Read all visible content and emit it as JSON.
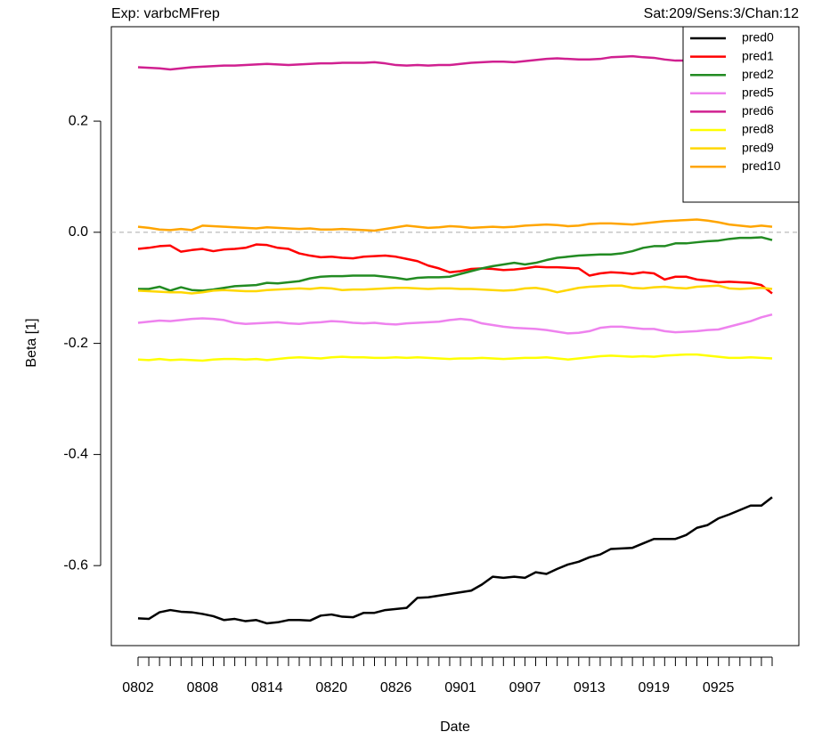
{
  "chart_data": {
    "type": "line",
    "title": "Exp: varbcMFrep",
    "subtitle": "Sat:209/Sens:3/Chan:12",
    "x_label": "Date",
    "y_label": "Beta [1]",
    "categories": [
      "0802",
      null,
      null,
      null,
      null,
      null,
      "0808",
      null,
      null,
      null,
      null,
      null,
      "0814",
      null,
      null,
      null,
      null,
      null,
      "0820",
      null,
      null,
      null,
      null,
      null,
      "0826",
      null,
      null,
      null,
      null,
      null,
      "0901",
      null,
      null,
      null,
      null,
      null,
      "0907",
      null,
      null,
      null,
      null,
      null,
      "0913",
      null,
      null,
      null,
      null,
      null,
      "0919",
      null,
      null,
      null,
      null,
      null,
      "0925",
      null,
      null,
      null,
      null,
      null
    ],
    "ylim": [
      -0.744,
      0.37
    ],
    "yticks": [
      0.2,
      {
        "value": 0,
        "label": "0.0"
      },
      -0.2,
      -0.4,
      -0.6
    ],
    "reference_line": 0,
    "legend": "topright",
    "series": [
      {
        "name": "pred0",
        "color": "#000000",
        "values": [
          -0.695,
          -0.696,
          -0.684,
          -0.68,
          -0.683,
          -0.684,
          -0.687,
          -0.691,
          -0.698,
          -0.696,
          -0.7,
          -0.698,
          -0.704,
          -0.702,
          -0.698,
          -0.698,
          -0.699,
          -0.69,
          -0.688,
          -0.692,
          -0.693,
          -0.685,
          -0.685,
          -0.68,
          -0.678,
          -0.676,
          -0.658,
          -0.657,
          -0.654,
          -0.651,
          -0.648,
          -0.645,
          -0.634,
          -0.62,
          -0.622,
          -0.62,
          -0.622,
          -0.612,
          -0.615,
          -0.606,
          -0.598,
          -0.593,
          -0.585,
          -0.58,
          -0.57,
          -0.569,
          -0.568,
          -0.56,
          -0.552,
          -0.552,
          -0.552,
          -0.545,
          -0.532,
          -0.527,
          -0.515,
          -0.508,
          -0.5,
          -0.492,
          -0.492,
          -0.477
        ]
      },
      {
        "name": "pred1",
        "color": "#ff0000",
        "values": [
          -0.03,
          -0.028,
          -0.025,
          -0.024,
          -0.035,
          -0.032,
          -0.03,
          -0.034,
          -0.031,
          -0.03,
          -0.028,
          -0.022,
          -0.023,
          -0.028,
          -0.03,
          -0.038,
          -0.042,
          -0.045,
          -0.044,
          -0.046,
          -0.047,
          -0.044,
          -0.043,
          -0.042,
          -0.044,
          -0.048,
          -0.052,
          -0.06,
          -0.065,
          -0.072,
          -0.07,
          -0.066,
          -0.065,
          -0.066,
          -0.068,
          -0.067,
          -0.065,
          -0.062,
          -0.063,
          -0.063,
          -0.064,
          -0.065,
          -0.078,
          -0.074,
          -0.072,
          -0.073,
          -0.075,
          -0.072,
          -0.074,
          -0.085,
          -0.08,
          -0.08,
          -0.085,
          -0.087,
          -0.09,
          -0.089,
          -0.09,
          -0.091,
          -0.095,
          -0.11
        ]
      },
      {
        "name": "pred2",
        "color": "#228b22",
        "values": [
          -0.102,
          -0.102,
          -0.098,
          -0.105,
          -0.099,
          -0.104,
          -0.105,
          -0.103,
          -0.1,
          -0.097,
          -0.096,
          -0.095,
          -0.091,
          -0.092,
          -0.09,
          -0.088,
          -0.083,
          -0.08,
          -0.079,
          -0.079,
          -0.078,
          -0.078,
          -0.078,
          -0.08,
          -0.082,
          -0.085,
          -0.082,
          -0.081,
          -0.081,
          -0.08,
          -0.075,
          -0.07,
          -0.065,
          -0.061,
          -0.058,
          -0.055,
          -0.058,
          -0.055,
          -0.05,
          -0.046,
          -0.044,
          -0.042,
          -0.041,
          -0.04,
          -0.04,
          -0.038,
          -0.034,
          -0.028,
          -0.025,
          -0.025,
          -0.02,
          -0.02,
          -0.018,
          -0.016,
          -0.015,
          -0.012,
          -0.01,
          -0.01,
          -0.009,
          -0.014
        ]
      },
      {
        "name": "pred5",
        "color": "#ee82ee",
        "values": [
          -0.163,
          -0.161,
          -0.159,
          -0.16,
          -0.158,
          -0.156,
          -0.155,
          -0.156,
          -0.158,
          -0.163,
          -0.165,
          -0.164,
          -0.163,
          -0.162,
          -0.164,
          -0.165,
          -0.163,
          -0.162,
          -0.16,
          -0.161,
          -0.163,
          -0.164,
          -0.163,
          -0.165,
          -0.166,
          -0.164,
          -0.163,
          -0.162,
          -0.161,
          -0.158,
          -0.156,
          -0.158,
          -0.164,
          -0.167,
          -0.17,
          -0.172,
          -0.173,
          -0.174,
          -0.176,
          -0.179,
          -0.182,
          -0.181,
          -0.178,
          -0.172,
          -0.17,
          -0.17,
          -0.172,
          -0.174,
          -0.174,
          -0.178,
          -0.18,
          -0.179,
          -0.178,
          -0.176,
          -0.175,
          -0.17,
          -0.165,
          -0.16,
          -0.153,
          -0.148
        ]
      },
      {
        "name": "pred6",
        "color": "#d02090",
        "values": [
          0.297,
          0.296,
          0.295,
          0.293,
          0.295,
          0.297,
          0.298,
          0.299,
          0.3,
          0.3,
          0.301,
          0.302,
          0.303,
          0.302,
          0.301,
          0.302,
          0.303,
          0.304,
          0.304,
          0.305,
          0.305,
          0.305,
          0.306,
          0.304,
          0.301,
          0.3,
          0.301,
          0.3,
          0.301,
          0.301,
          0.303,
          0.305,
          0.306,
          0.307,
          0.307,
          0.306,
          0.308,
          0.31,
          0.312,
          0.313,
          0.312,
          0.311,
          0.311,
          0.312,
          0.315,
          0.316,
          0.317,
          0.315,
          0.314,
          0.311,
          0.309,
          0.309,
          0.31,
          0.31,
          0.31,
          0.311,
          0.311,
          0.31,
          0.31,
          0.31
        ]
      },
      {
        "name": "pred8",
        "color": "#ffff00",
        "values": [
          -0.229,
          -0.23,
          -0.228,
          -0.23,
          -0.229,
          -0.23,
          -0.231,
          -0.229,
          -0.228,
          -0.228,
          -0.229,
          -0.228,
          -0.23,
          -0.228,
          -0.226,
          -0.225,
          -0.226,
          -0.227,
          -0.225,
          -0.224,
          -0.225,
          -0.225,
          -0.226,
          -0.226,
          -0.225,
          -0.226,
          -0.225,
          -0.226,
          -0.227,
          -0.228,
          -0.227,
          -0.227,
          -0.226,
          -0.227,
          -0.228,
          -0.227,
          -0.226,
          -0.226,
          -0.225,
          -0.227,
          -0.229,
          -0.227,
          -0.225,
          -0.223,
          -0.222,
          -0.223,
          -0.224,
          -0.223,
          -0.224,
          -0.222,
          -0.221,
          -0.22,
          -0.22,
          -0.222,
          -0.224,
          -0.226,
          -0.226,
          -0.225,
          -0.226,
          -0.227
        ]
      },
      {
        "name": "pred9",
        "color": "#ffd700",
        "values": [
          -0.105,
          -0.106,
          -0.107,
          -0.108,
          -0.108,
          -0.11,
          -0.108,
          -0.105,
          -0.104,
          -0.105,
          -0.106,
          -0.106,
          -0.104,
          -0.103,
          -0.102,
          -0.101,
          -0.102,
          -0.1,
          -0.101,
          -0.104,
          -0.103,
          -0.103,
          -0.102,
          -0.101,
          -0.1,
          -0.1,
          -0.101,
          -0.102,
          -0.101,
          -0.101,
          -0.102,
          -0.102,
          -0.103,
          -0.104,
          -0.105,
          -0.104,
          -0.101,
          -0.1,
          -0.103,
          -0.108,
          -0.104,
          -0.1,
          -0.098,
          -0.097,
          -0.096,
          -0.096,
          -0.1,
          -0.101,
          -0.099,
          -0.098,
          -0.1,
          -0.101,
          -0.098,
          -0.097,
          -0.096,
          -0.101,
          -0.102,
          -0.101,
          -0.1,
          -0.102
        ]
      },
      {
        "name": "pred10",
        "color": "#ffa500",
        "values": [
          0.01,
          0.008,
          0.005,
          0.004,
          0.006,
          0.004,
          0.012,
          0.011,
          0.01,
          0.009,
          0.008,
          0.007,
          0.009,
          0.008,
          0.007,
          0.006,
          0.007,
          0.005,
          0.005,
          0.006,
          0.005,
          0.004,
          0.003,
          0.006,
          0.009,
          0.012,
          0.01,
          0.008,
          0.009,
          0.011,
          0.01,
          0.008,
          0.009,
          0.01,
          0.009,
          0.01,
          0.012,
          0.013,
          0.014,
          0.013,
          0.011,
          0.012,
          0.015,
          0.016,
          0.016,
          0.015,
          0.014,
          0.016,
          0.018,
          0.02,
          0.021,
          0.022,
          0.023,
          0.021,
          0.018,
          0.014,
          0.012,
          0.01,
          0.012,
          0.01
        ]
      }
    ]
  }
}
